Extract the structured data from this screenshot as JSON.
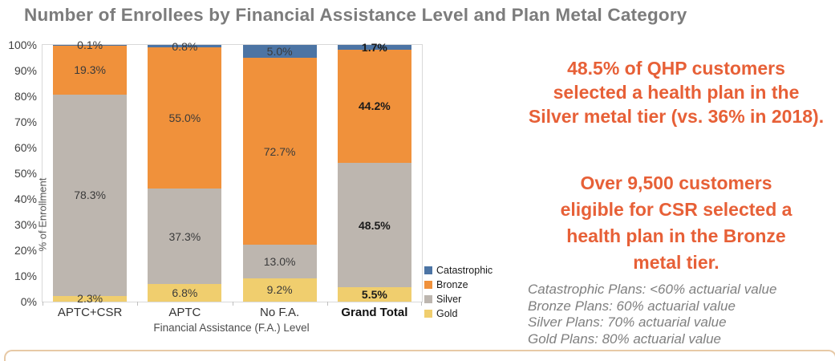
{
  "title": "Number of Enrollees by Financial Assistance Level and Plan Metal Category",
  "chart_data": {
    "type": "bar",
    "stacked": true,
    "title": "Number of Enrollees by Financial Assistance Level and Plan Metal Category",
    "categories": [
      "APTC+CSR",
      "APTC",
      "No F.A.",
      "Grand Total"
    ],
    "series": [
      {
        "name": "Gold",
        "color": "#f0ce6e",
        "values": [
          2.3,
          6.8,
          9.2,
          5.5
        ]
      },
      {
        "name": "Silver",
        "color": "#bdb6af",
        "values": [
          78.3,
          37.3,
          13.0,
          48.5
        ]
      },
      {
        "name": "Bronze",
        "color": "#f0913b",
        "values": [
          19.3,
          55.0,
          72.7,
          44.2
        ]
      },
      {
        "name": "Catastrophic",
        "color": "#4c74a4",
        "values": [
          0.1,
          0.8,
          5.0,
          1.7
        ]
      }
    ],
    "xlabel": "Financial Assistance (F.A.) Level",
    "ylabel": "% of Enrollment",
    "ylim": [
      0,
      100
    ],
    "y_ticks": [
      "0%",
      "10%",
      "20%",
      "30%",
      "40%",
      "50%",
      "60%",
      "70%",
      "80%",
      "90%",
      "100%"
    ],
    "grid": false,
    "legend_position": "right-bottom",
    "legend": [
      "Catastrophic",
      "Bronze",
      "Silver",
      "Gold"
    ],
    "emphasized_category": "Grand Total",
    "data_label_format": "one-decimal-percent"
  },
  "annotations": {
    "callout1": "48.5% of QHP customers\nselected a health plan in the\nSilver metal tier (vs. 36% in 2018).",
    "callout2": "Over 9,500 customers\neligible for CSR selected a\nhealth plan in the Bronze\nmetal tier.",
    "footnotes": [
      "Catastrophic Plans: <60% actuarial value",
      "Bronze Plans: 60% actuarial value",
      "Silver Plans: 70% actuarial value",
      "Gold Plans: 80% actuarial value"
    ]
  },
  "colors": {
    "title_gray": "#7c7c7c",
    "accent_orange_text": "#e76037",
    "bronze": "#f0913b",
    "silver": "#bdb6af",
    "gold": "#f0ce6e",
    "catastrophic_blue": "#4c74a4",
    "footnote_gray": "#7f7f7f",
    "bottom_rule_tan": "#e7c9a6"
  }
}
